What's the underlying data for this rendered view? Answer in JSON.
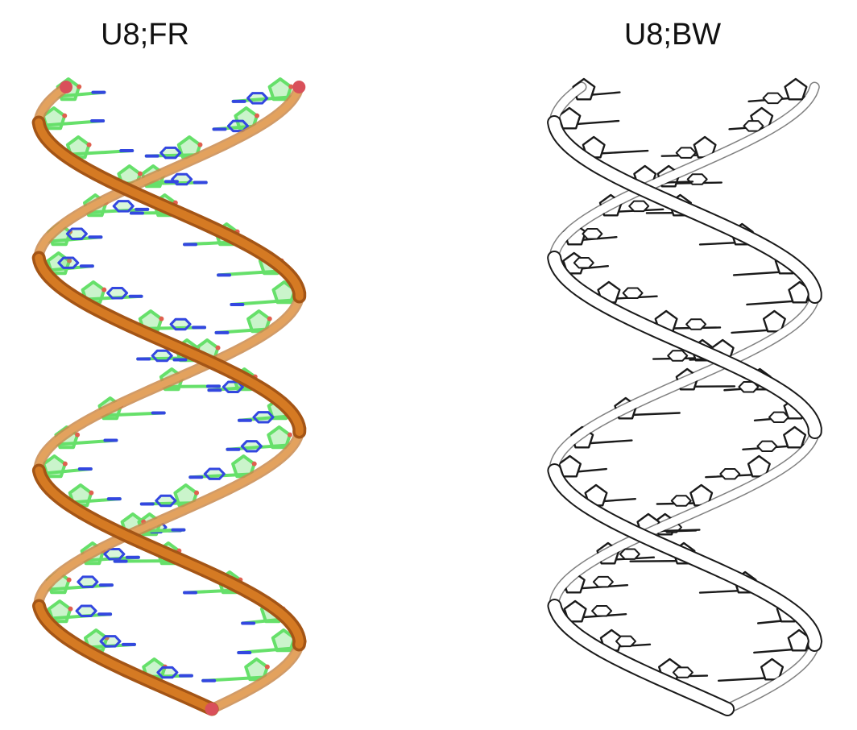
{
  "panels": [
    {
      "label": "U8;FR",
      "style": "color-cartoon"
    },
    {
      "label": "U8;BW",
      "style": "black-white-sketch"
    }
  ],
  "colors": {
    "backbone": "#d57a23",
    "backbone_dark": "#a45516",
    "backbone_end": "#d9505a",
    "carbon": "#66e06a",
    "nitrogen": "#3347e0",
    "oxygen": "#e0604f",
    "sketch_line": "#1a1a1a",
    "sketch_fill": "#ffffff"
  }
}
